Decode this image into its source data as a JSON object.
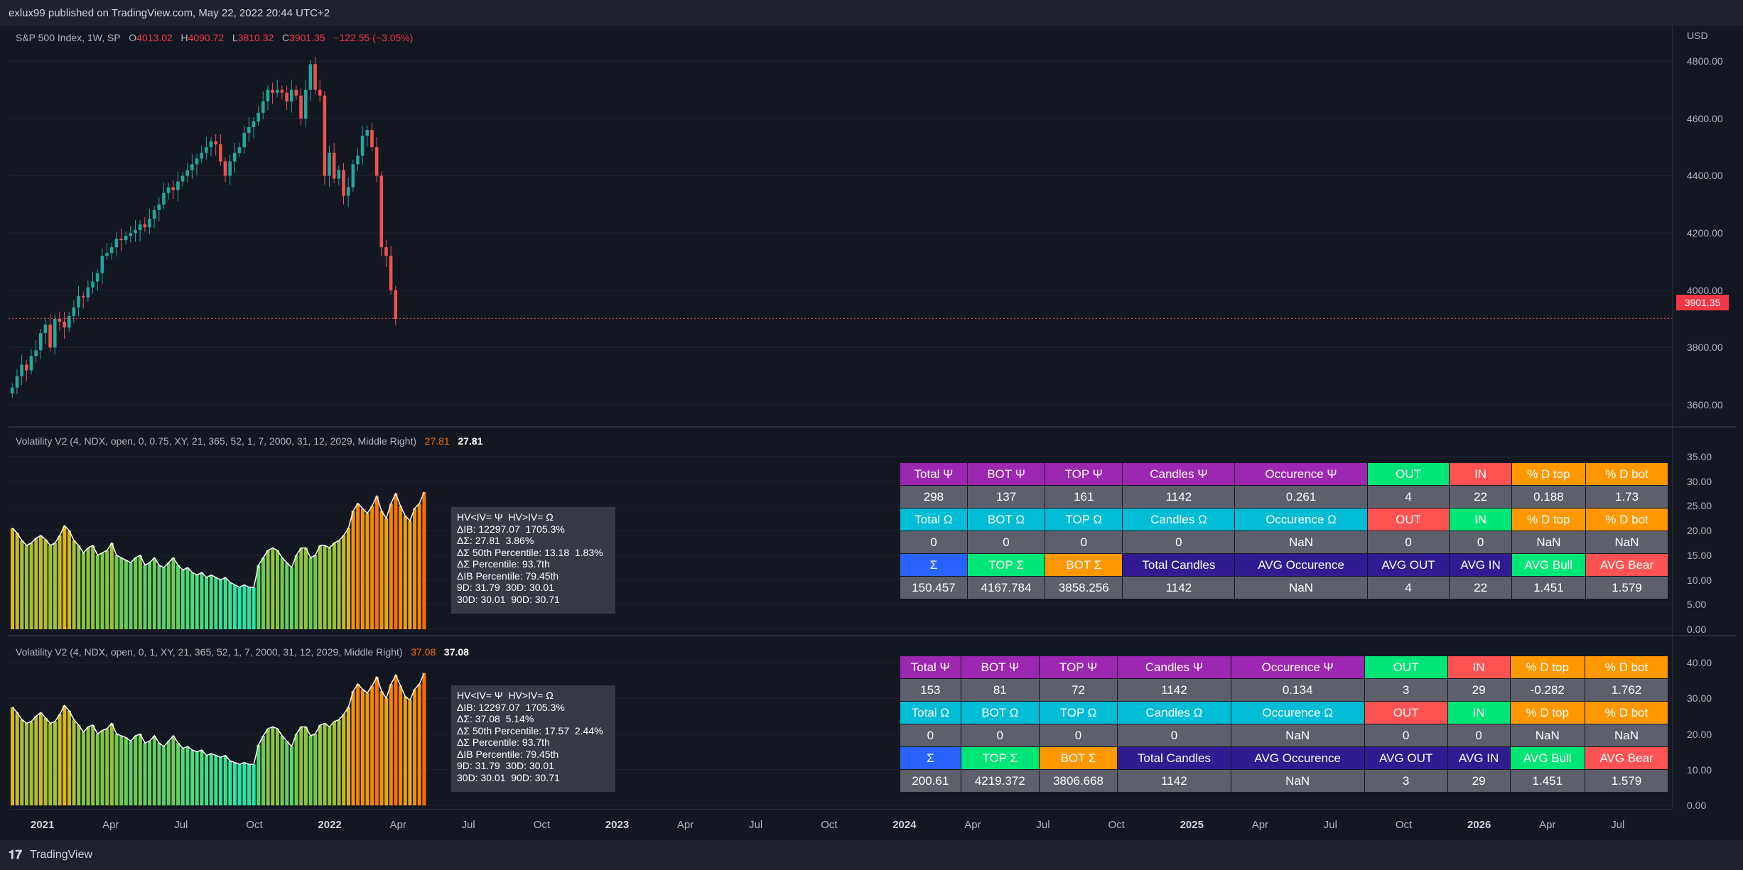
{
  "header": {
    "published": "exlux99 published on TradingView.com, May 22, 2022 20:44 UTC+2"
  },
  "footer": {
    "brand": "TradingView"
  },
  "price_pane": {
    "legend_symbol": "S&P 500 Index, 1W, SP",
    "open_label": "O",
    "open": "4013.02",
    "high_label": "H",
    "high": "4090.72",
    "low_label": "L",
    "low": "3810.32",
    "close_label": "C",
    "close": "3901.35",
    "change": "−122.55 (−3.05%)",
    "currency": "USD",
    "last_price_tag": "3901.35",
    "scale_labels": [
      "4800.00",
      "4600.00",
      "4400.00",
      "4200.00",
      "4000.00",
      "3800.00",
      "3600.00"
    ]
  },
  "vol_pane_1": {
    "legend": "Volatility V2 (4, NDX, open, 0, 0.75, XY, 21, 365, 52, 1, 7, 2000, 31, 12, 2029, Middle Right)",
    "value_a": "27.81",
    "value_b": "27.81",
    "scale_labels": [
      "35.00",
      "30.00",
      "25.00",
      "20.00",
      "15.00",
      "10.00",
      "5.00",
      "0.00"
    ],
    "info": [
      "HV<IV= Ψ  HV>IV= Ω",
      "ΔIB: 12297.07  1705.3%",
      "ΔΣ: 27.81  3.86%",
      "ΔΣ 50th Percentile: 13.18  1.83%",
      "ΔΣ Percentile: 93.7th",
      "ΔIB Percentile: 79.45th",
      "9D: 31.79  30D: 30.01",
      "30D: 30.01  90D: 30.71"
    ],
    "table": [
      [
        "Total Ψ",
        "BOT Ψ",
        "TOP Ψ",
        "Candles Ψ",
        "Occurence Ψ",
        "OUT",
        "IN",
        "% D top",
        "% D bot"
      ],
      [
        "298",
        "137",
        "161",
        "1142",
        "0.261",
        "4",
        "22",
        "0.188",
        "1.73"
      ],
      [
        "Total Ω",
        "BOT Ω",
        "TOP Ω",
        "Candles Ω",
        "Occurence Ω",
        "OUT",
        "IN",
        "% D top",
        "% D bot"
      ],
      [
        "0",
        "0",
        "0",
        "0",
        "NaN",
        "0",
        "0",
        "NaN",
        "NaN"
      ],
      [
        "Σ",
        "TOP Σ",
        "BOT Σ",
        "Total Candles",
        "AVG Occurence",
        "AVG OUT",
        "AVG IN",
        "AVG Bull",
        "AVG Bear"
      ],
      [
        "150.457",
        "4167.784",
        "3858.256",
        "1142",
        "NaN",
        "4",
        "22",
        "1.451",
        "1.579"
      ]
    ]
  },
  "vol_pane_2": {
    "legend": "Volatility V2 (4, NDX, open, 0, 1, XY, 21, 365, 52, 1, 7, 2000, 31, 12, 2029, Middle Right)",
    "value_a": "37.08",
    "value_b": "37.08",
    "scale_labels": [
      "40.00",
      "30.00",
      "20.00",
      "10.00",
      "0.00"
    ],
    "info": [
      "HV<IV= Ψ  HV>IV= Ω",
      "ΔIB: 12297.07  1705.3%",
      "ΔΣ: 37.08  5.14%",
      "ΔΣ 50th Percentile: 17.57  2.44%",
      "ΔΣ Percentile: 93.7th",
      "ΔIB Percentile: 79.45th",
      "9D: 31.79  30D: 30.01",
      "30D: 30.01  90D: 30.71"
    ],
    "table": [
      [
        "Total Ψ",
        "BOT Ψ",
        "TOP Ψ",
        "Candles Ψ",
        "Occurence Ψ",
        "OUT",
        "IN",
        "% D top",
        "% D bot"
      ],
      [
        "153",
        "81",
        "72",
        "1142",
        "0.134",
        "3",
        "29",
        "-0.282",
        "1.762"
      ],
      [
        "Total Ω",
        "BOT Ω",
        "TOP Ω",
        "Candles Ω",
        "Occurence Ω",
        "OUT",
        "IN",
        "% D top",
        "% D bot"
      ],
      [
        "0",
        "0",
        "0",
        "0",
        "NaN",
        "0",
        "0",
        "NaN",
        "NaN"
      ],
      [
        "Σ",
        "TOP Σ",
        "BOT Σ",
        "Total Candles",
        "AVG Occurence",
        "AVG OUT",
        "AVG IN",
        "AVG Bull",
        "AVG Bear"
      ],
      [
        "200.61",
        "4219.372",
        "3806.668",
        "1142",
        "NaN",
        "3",
        "29",
        "1.451",
        "1.579"
      ]
    ]
  },
  "table_colors": {
    "header_row1": [
      "#9c27b0",
      "#9c27b0",
      "#9c27b0",
      "#9c27b0",
      "#9c27b0",
      "#00e676",
      "#ff5252",
      "#ff9800",
      "#ff9800"
    ],
    "header_row2": [
      "#00bcd4",
      "#00bcd4",
      "#00bcd4",
      "#00bcd4",
      "#00bcd4",
      "#ff5252",
      "#00e676",
      "#ff9800",
      "#ff9800"
    ],
    "header_row3": [
      "#2962ff",
      "#00e676",
      "#ff9800",
      "#311b92",
      "#311b92",
      "#311b92",
      "#311b92",
      "#00e676",
      "#ff5252"
    ],
    "value_row": "#5d606b"
  },
  "time_axis": [
    {
      "label": "2021",
      "bold": true
    },
    {
      "label": "Apr"
    },
    {
      "label": "Jul"
    },
    {
      "label": "Oct"
    },
    {
      "label": "2022",
      "bold": true
    },
    {
      "label": "Apr"
    },
    {
      "label": "Jul"
    },
    {
      "label": "Oct"
    },
    {
      "label": "2023",
      "bold": true
    },
    {
      "label": "Apr"
    },
    {
      "label": "Jul"
    },
    {
      "label": "Oct"
    },
    {
      "label": "2024",
      "bold": true
    },
    {
      "label": "Apr"
    },
    {
      "label": "Jul"
    },
    {
      "label": "Oct"
    },
    {
      "label": "2025",
      "bold": true
    },
    {
      "label": "Apr"
    },
    {
      "label": "Jul"
    },
    {
      "label": "Oct"
    },
    {
      "label": "2026",
      "bold": true
    },
    {
      "label": "Apr"
    },
    {
      "label": "Jul"
    }
  ],
  "colors": {
    "bull": "#26a69a",
    "bear": "#ef5350",
    "bg": "#131722",
    "grid": "#1f2330",
    "text": "#b2b5be"
  },
  "chart_data": [
    {
      "type": "candlestick",
      "title": "S&P 500 Index, 1W, SP",
      "ylim": [
        3550,
        4900
      ],
      "x_start": "2020-12-14",
      "interval": "1W",
      "series": [
        {
          "name": "S&P 500 Index",
          "close": [
            3660,
            3700,
            3740,
            3720,
            3770,
            3790,
            3850,
            3880,
            3800,
            3900,
            3890,
            3870,
            3910,
            3940,
            3980,
            3975,
            4010,
            4030,
            4060,
            4120,
            4130,
            4150,
            4180,
            4175,
            4190,
            4200,
            4210,
            4230,
            4220,
            4250,
            4280,
            4300,
            4340,
            4360,
            4350,
            4380,
            4400,
            4420,
            4440,
            4460,
            4480,
            4500,
            4520,
            4510,
            4450,
            4400,
            4450,
            4480,
            4500,
            4550,
            4570,
            4590,
            4620,
            4660,
            4700,
            4690,
            4700,
            4690,
            4660,
            4700,
            4680,
            4600,
            4700,
            4790,
            4700,
            4680,
            4400,
            4480,
            4390,
            4420,
            4330,
            4360,
            4440,
            4470,
            4540,
            4560,
            4500,
            4400,
            4150,
            4120,
            4000,
            3900
          ]
        }
      ]
    },
    {
      "type": "area",
      "title": "Volatility V2 (4, NDX, open, 0, 0.75, XY, 21, 365, 52, 1, 7, 2000, 31, 12, 2029, Middle Right)",
      "ylim": [
        0,
        35
      ],
      "series": [
        {
          "name": "Volatility V2",
          "values": [
            20.5,
            19.5,
            18,
            17,
            17.5,
            18.5,
            19,
            18.2,
            17,
            17.5,
            19,
            21,
            20,
            18,
            17,
            15.5,
            16.5,
            17,
            15,
            15.5,
            16,
            17.5,
            15,
            14.5,
            14,
            13.5,
            14.5,
            15,
            13,
            13.5,
            14.5,
            13,
            12.5,
            13.5,
            14.5,
            13,
            12,
            12.5,
            11.5,
            11,
            11.5,
            10.5,
            11,
            10.5,
            10,
            10.5,
            9.5,
            9,
            8.5,
            9,
            8.5,
            8.5,
            13,
            14.5,
            16,
            16.5,
            16,
            14.5,
            13.5,
            12.5,
            15,
            16.5,
            16.5,
            14.5,
            15,
            17,
            17,
            16.5,
            17.5,
            18,
            19,
            20.5,
            24,
            25.5,
            24.5,
            23.5,
            25,
            27,
            24,
            22.5,
            25.5,
            27.5,
            25,
            23,
            22,
            24.5,
            25.5,
            27.81
          ]
        }
      ]
    },
    {
      "type": "area",
      "title": "Volatility V2 (4, NDX, open, 0, 1, XY, 21, 365, 52, 1, 7, 2000, 31, 12, 2029, Middle Right)",
      "ylim": [
        0,
        40
      ],
      "series": [
        {
          "name": "Volatility V2",
          "values": [
            27.5,
            26,
            24,
            23,
            23.5,
            25,
            26,
            24.5,
            23,
            23.5,
            25.5,
            28,
            26.5,
            24,
            22.5,
            20.5,
            22,
            22.5,
            20,
            21,
            21.5,
            23,
            20,
            19.5,
            19,
            18,
            19.5,
            20,
            17.5,
            18,
            19.5,
            17.5,
            16.5,
            18,
            19.5,
            17.5,
            16,
            16.5,
            15.5,
            15,
            15.5,
            14,
            14.5,
            14,
            13.5,
            14,
            12.5,
            12,
            11.5,
            12,
            11.5,
            11.5,
            17,
            19.5,
            21.5,
            22,
            21.5,
            19.5,
            18,
            16.5,
            20,
            22,
            22,
            19.5,
            20,
            22.5,
            23,
            22,
            23.5,
            24,
            25.5,
            27.5,
            32,
            34,
            32.5,
            31.5,
            33.5,
            36,
            32,
            30,
            34,
            36.5,
            33.5,
            30.5,
            29.5,
            32.5,
            34,
            37.08
          ]
        }
      ]
    }
  ]
}
